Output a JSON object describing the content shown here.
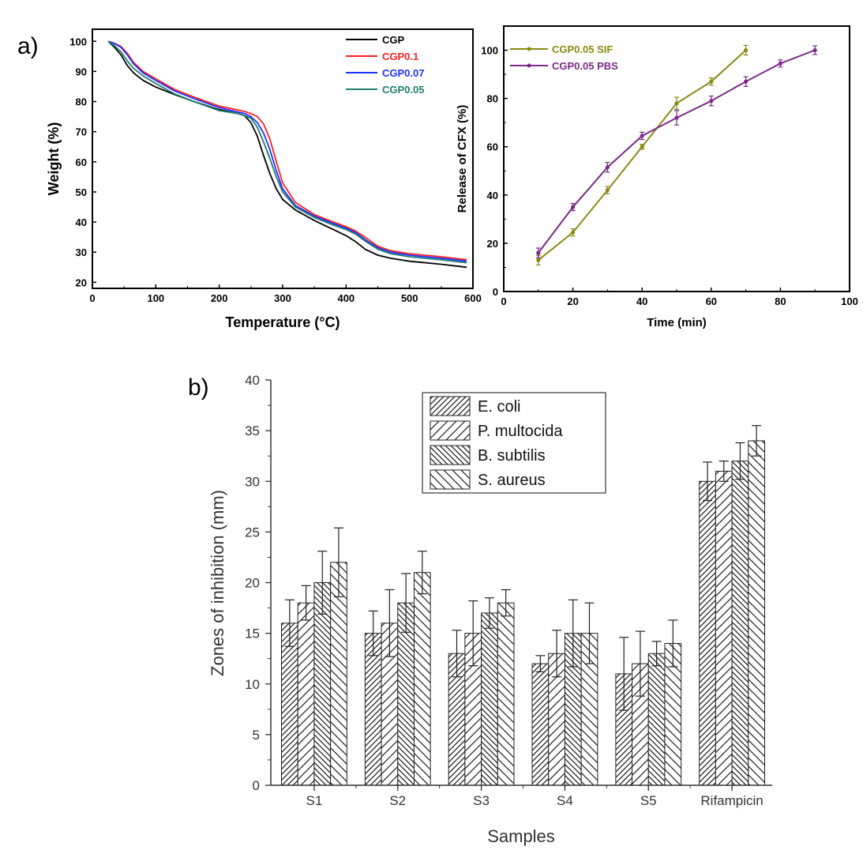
{
  "panel_labels": {
    "a": "a)",
    "b": "b)"
  },
  "chart_data": [
    {
      "id": "tga",
      "type": "line",
      "title": "",
      "xlabel": "Temperature (°C)",
      "ylabel": "Weight (%)",
      "xlim": [
        0,
        600
      ],
      "ylim": [
        18,
        104
      ],
      "xticks": [
        0,
        100,
        200,
        300,
        400,
        500,
        600
      ],
      "yticks": [
        20,
        30,
        40,
        50,
        60,
        70,
        80,
        90,
        100
      ],
      "legend_position": "top-right",
      "series": [
        {
          "name": "CGP",
          "color": "#000000",
          "x": [
            25,
            35,
            45,
            55,
            65,
            80,
            100,
            130,
            160,
            200,
            230,
            240,
            250,
            260,
            270,
            280,
            290,
            300,
            320,
            350,
            380,
            400,
            415,
            430,
            450,
            470,
            500,
            550,
            590
          ],
          "y": [
            100,
            98,
            95.5,
            92,
            89.5,
            87,
            84.8,
            82.3,
            80,
            77.3,
            76,
            75.3,
            73,
            68.5,
            62,
            56,
            51,
            47.5,
            44,
            40.5,
            37.5,
            35.5,
            33.5,
            31,
            29,
            28,
            27,
            26,
            25
          ]
        },
        {
          "name": "CGP0.1",
          "color": "#ff2020",
          "x": [
            25,
            35,
            45,
            55,
            65,
            80,
            100,
            130,
            160,
            200,
            230,
            240,
            250,
            260,
            270,
            280,
            290,
            300,
            320,
            350,
            380,
            400,
            415,
            430,
            450,
            470,
            500,
            550,
            590
          ],
          "y": [
            100,
            99.3,
            98.3,
            96,
            93,
            90,
            87.5,
            84,
            81.5,
            78.5,
            77.2,
            76.7,
            76,
            75,
            72.5,
            67.5,
            60,
            53,
            46.5,
            42.5,
            40,
            38.5,
            37,
            35,
            32,
            30.5,
            29.5,
            28.5,
            27.5
          ]
        },
        {
          "name": "CGP0.07",
          "color": "#2030ff",
          "x": [
            25,
            35,
            45,
            55,
            65,
            80,
            100,
            130,
            160,
            200,
            230,
            240,
            250,
            260,
            270,
            280,
            290,
            300,
            320,
            350,
            380,
            400,
            415,
            430,
            450,
            470,
            500,
            550,
            590
          ],
          "y": [
            100,
            99.2,
            98,
            95.5,
            92.5,
            89.5,
            87,
            83.5,
            81,
            78,
            76.5,
            76,
            75,
            73,
            69.5,
            64,
            57,
            51,
            45.5,
            42,
            39.5,
            38,
            36.5,
            34.2,
            31.5,
            30,
            29,
            28,
            27
          ]
        },
        {
          "name": "CGP0.05",
          "color": "#1e7d6e",
          "x": [
            25,
            35,
            45,
            55,
            65,
            80,
            100,
            130,
            160,
            200,
            230,
            240,
            250,
            260,
            270,
            280,
            290,
            300,
            320,
            350,
            380,
            400,
            415,
            430,
            450,
            470,
            500,
            550,
            590
          ],
          "y": [
            100,
            98.5,
            96.5,
            93.5,
            91,
            88.5,
            86,
            82.5,
            80,
            77,
            76,
            75.3,
            74.5,
            71.5,
            66.5,
            61,
            55,
            50,
            45,
            41.5,
            39,
            37.5,
            36,
            33.7,
            31,
            29.5,
            28.5,
            27.5,
            26.5
          ]
        }
      ]
    },
    {
      "id": "release",
      "type": "line",
      "title": "",
      "xlabel": "Time (min)",
      "ylabel": "Release of CFX (%)",
      "xlim": [
        0,
        100
      ],
      "ylim": [
        0,
        110
      ],
      "xticks": [
        0,
        20,
        40,
        60,
        80,
        100
      ],
      "yticks": [
        0,
        20,
        40,
        60,
        80,
        100
      ],
      "legend_position": "top-left",
      "series": [
        {
          "name": "CGP0.05 SIF",
          "color": "#8a8a16",
          "x": [
            10,
            20,
            30,
            40,
            50,
            60,
            70
          ],
          "y": [
            13,
            24.5,
            42,
            60,
            78,
            87,
            100
          ],
          "err": [
            2,
            1.5,
            1.5,
            1,
            2.5,
            1.5,
            2
          ]
        },
        {
          "name": "CGP0.05 PBS",
          "color": "#7b2a87",
          "x": [
            10,
            20,
            30,
            40,
            50,
            60,
            70,
            80,
            90
          ],
          "y": [
            16,
            35,
            51.5,
            64.5,
            72,
            79,
            87,
            94.5,
            100
          ],
          "err": [
            2,
            1.5,
            2,
            1.5,
            3,
            2,
            2,
            1.5,
            1.8
          ]
        }
      ]
    },
    {
      "id": "inhibition",
      "type": "bar",
      "title": "",
      "xlabel": "Samples",
      "ylabel": "Zones of inhibition (mm)",
      "ylim": [
        0,
        40
      ],
      "yticks": [
        0,
        5,
        10,
        15,
        20,
        25,
        30,
        35,
        40
      ],
      "categories": [
        "S1",
        "S2",
        "S3",
        "S4",
        "S5",
        "Rifampicin"
      ],
      "legend_position": "top-center",
      "series": [
        {
          "name": "E. coli",
          "values": [
            16,
            15,
            13,
            12,
            11,
            30
          ],
          "err": [
            2.3,
            2.2,
            2.3,
            0.8,
            3.6,
            1.9
          ]
        },
        {
          "name": "P. multocida",
          "values": [
            18,
            16,
            15,
            13,
            12,
            31
          ],
          "err": [
            1.7,
            3.3,
            3.2,
            2.3,
            3.2,
            1.0
          ]
        },
        {
          "name": "B. subtilis",
          "values": [
            20,
            18,
            17,
            15,
            13,
            32
          ],
          "err": [
            3.1,
            2.9,
            1.5,
            3.3,
            1.2,
            1.8
          ]
        },
        {
          "name": "S. aureus",
          "values": [
            22,
            21,
            18,
            15,
            14,
            34
          ],
          "err": [
            3.4,
            2.1,
            1.3,
            3.0,
            2.3,
            1.5
          ]
        }
      ]
    }
  ]
}
